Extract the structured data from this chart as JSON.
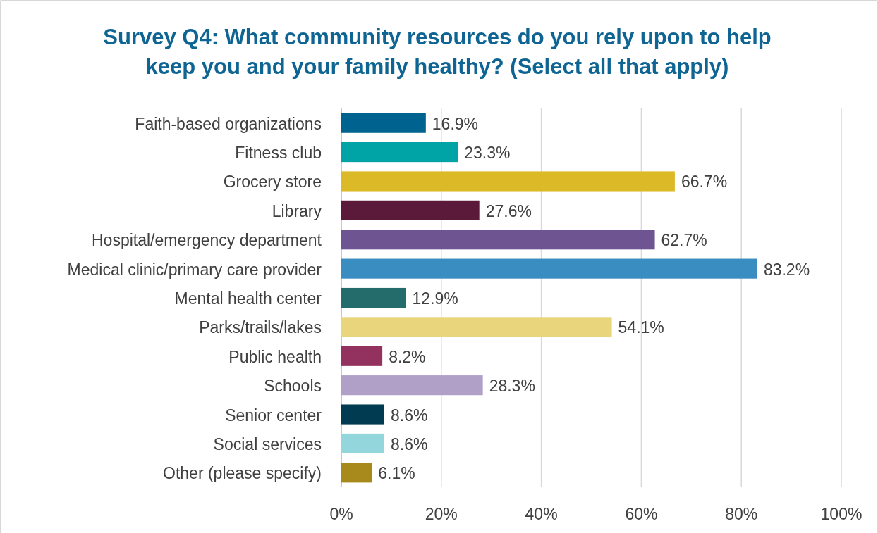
{
  "chart_data": {
    "type": "bar",
    "orientation": "horizontal",
    "title": "Survey Q4: What community resources do you rely upon to help keep you and your family healthy? (Select all that apply)",
    "categories": [
      "Faith-based organizations",
      "Fitness club",
      "Grocery store",
      "Library",
      "Hospital/emergency department",
      "Medical clinic/primary care provider",
      "Mental health center",
      "Parks/trails/lakes",
      "Public health",
      "Schools",
      "Senior center",
      "Social services",
      "Other (please specify)"
    ],
    "values": [
      16.9,
      23.3,
      66.7,
      27.6,
      62.7,
      83.2,
      12.9,
      54.1,
      8.2,
      28.3,
      8.6,
      8.6,
      6.1
    ],
    "colors": [
      "#00628f",
      "#00a3a6",
      "#dcb927",
      "#5c1a3a",
      "#6e5591",
      "#3a8dc1",
      "#246b6b",
      "#e8d57c",
      "#93325f",
      "#b0a0c8",
      "#003b52",
      "#93d6dc",
      "#a88a1c"
    ],
    "value_labels": [
      "16.9%",
      "23.3%",
      "66.7%",
      "27.6%",
      "62.7%",
      "83.2%",
      "12.9%",
      "54.1%",
      "8.2%",
      "28.3%",
      "8.6%",
      "8.6%",
      "6.1%"
    ],
    "xlim": [
      0,
      100
    ],
    "xticks": [
      {
        "value": 0,
        "label": "0%"
      },
      {
        "value": 20,
        "label": "20%"
      },
      {
        "value": 40,
        "label": "40%"
      },
      {
        "value": 60,
        "label": "60%"
      },
      {
        "value": 80,
        "label": "80%"
      },
      {
        "value": 100,
        "label": "100%"
      }
    ],
    "grid": "x"
  }
}
